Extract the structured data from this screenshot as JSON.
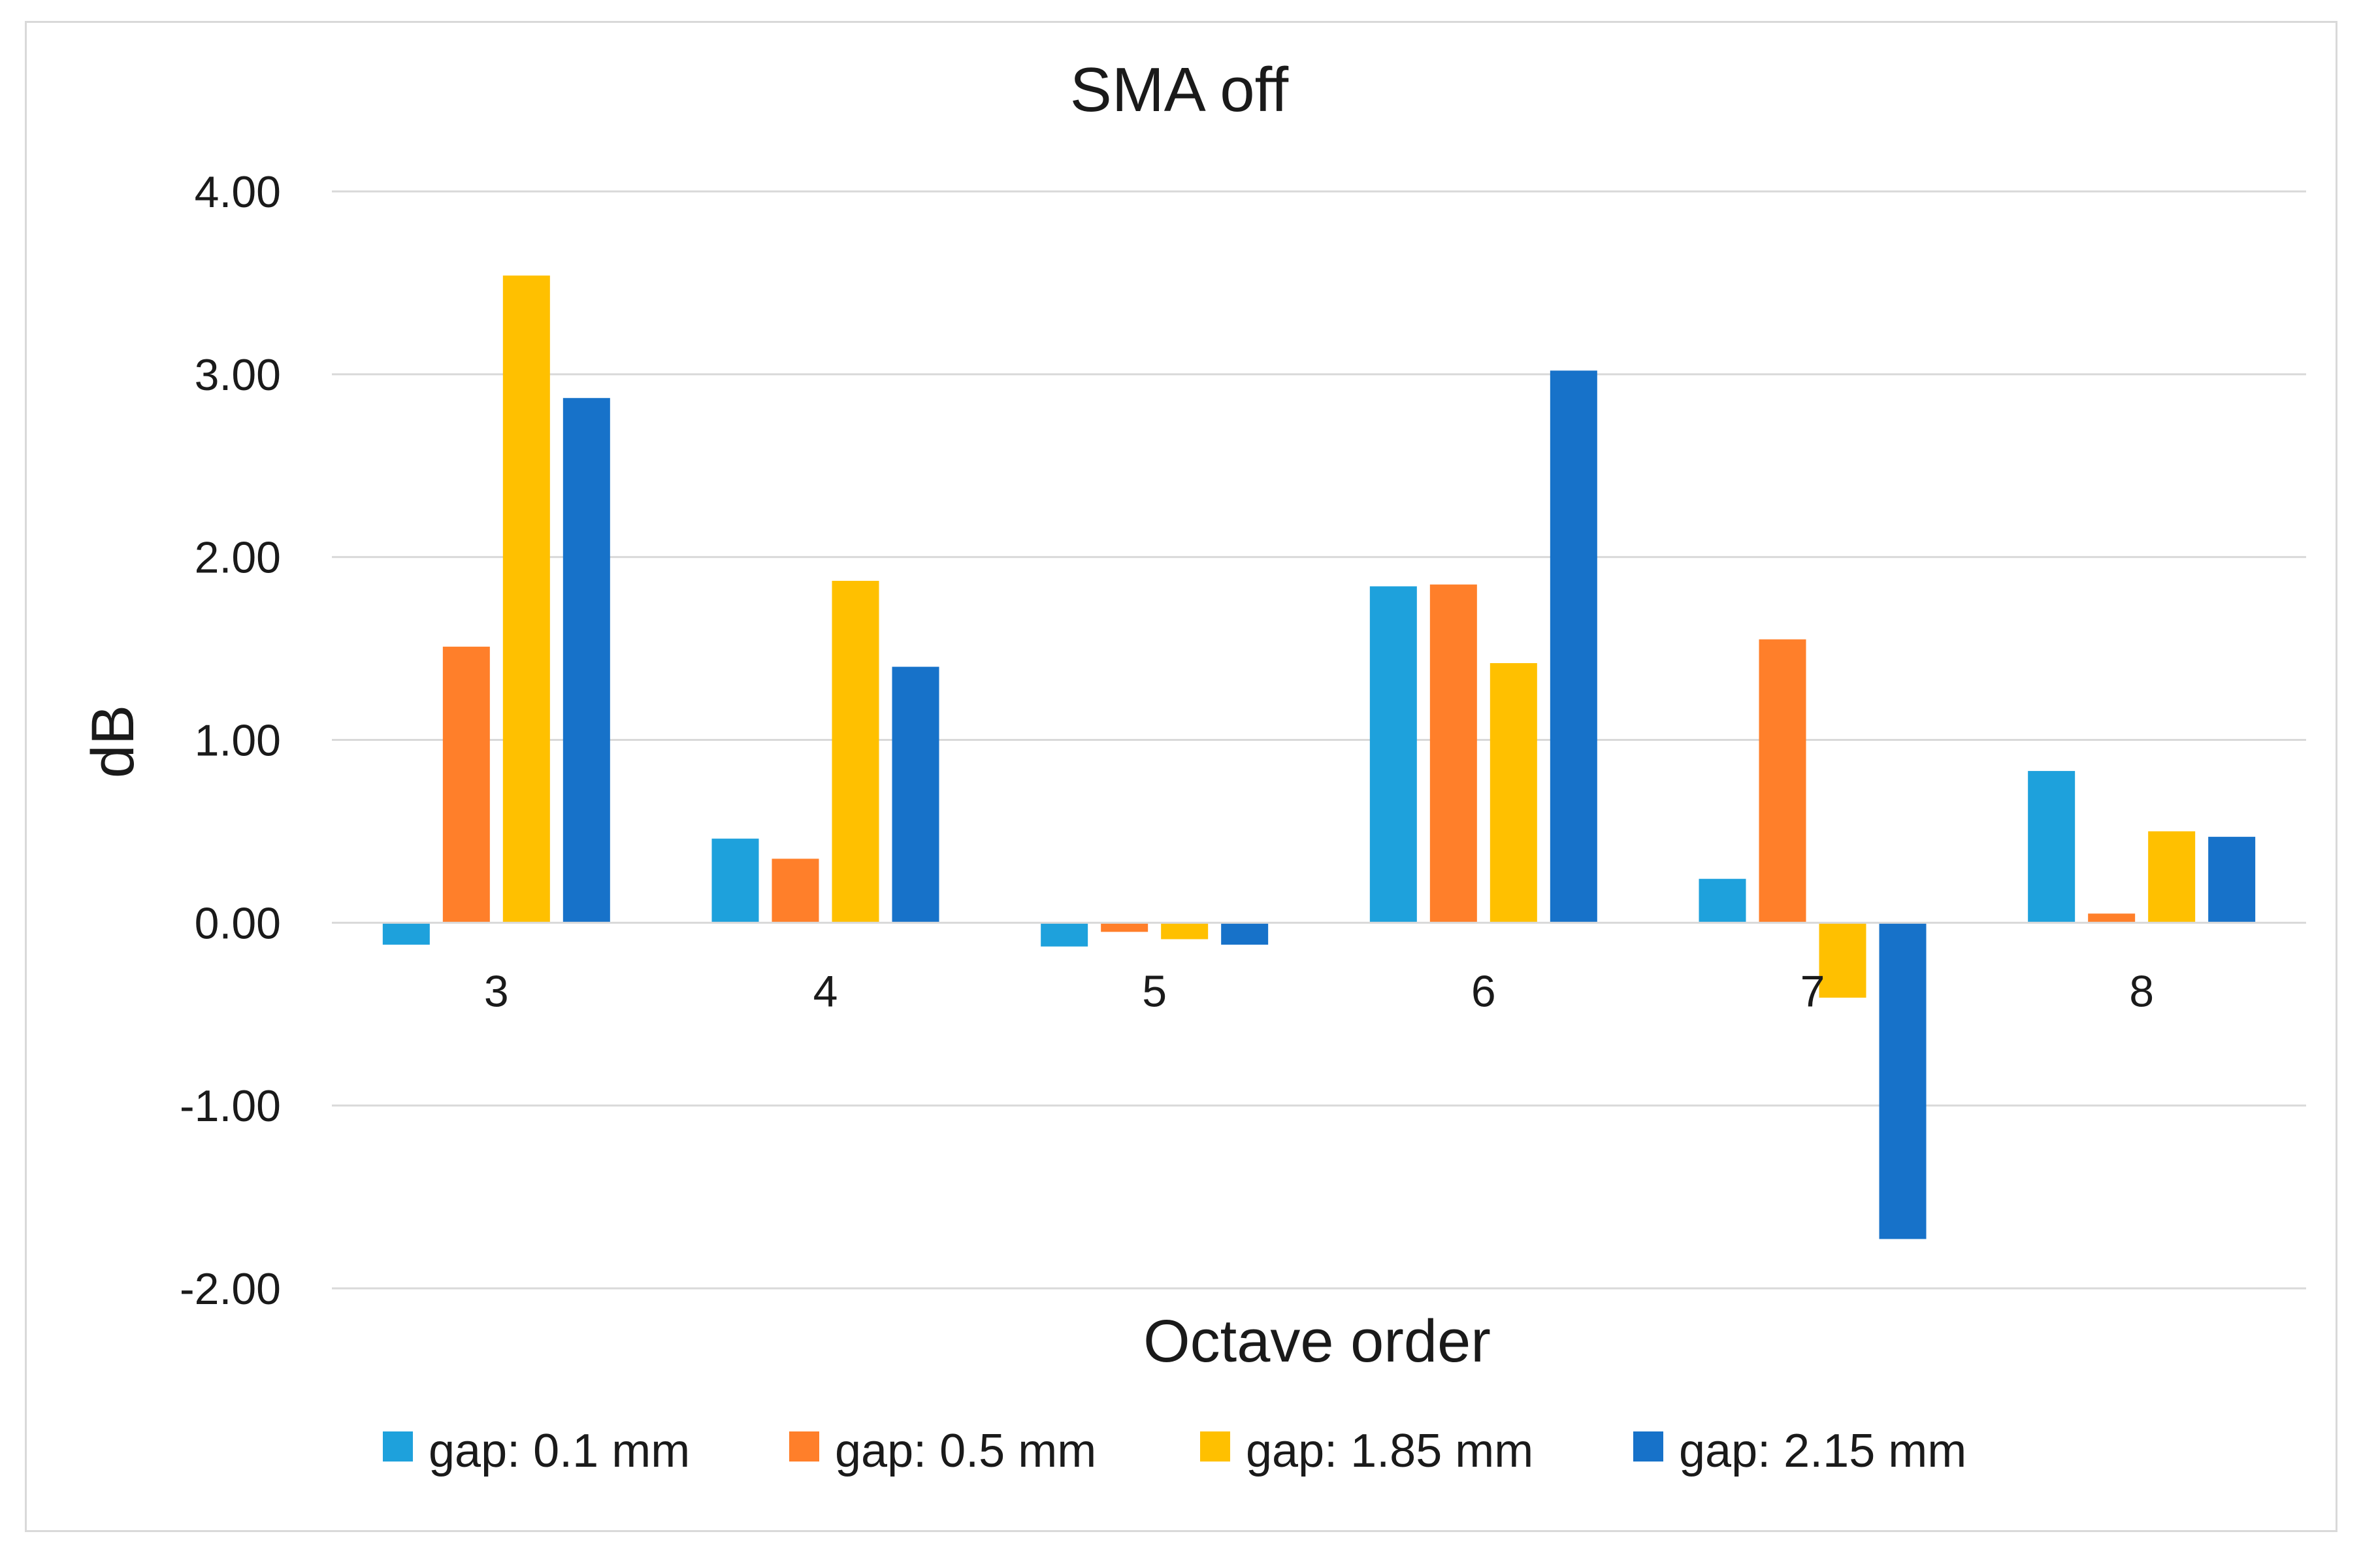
{
  "chart_data": {
    "type": "bar",
    "title": "SMA off",
    "xlabel": "Octave order",
    "ylabel": "dB",
    "categories": [
      "3",
      "4",
      "5",
      "6",
      "7",
      "8"
    ],
    "ylim": [
      -2.0,
      4.0
    ],
    "yticks": [
      4.0,
      3.0,
      2.0,
      1.0,
      0.0,
      -1.0,
      -2.0
    ],
    "ytick_labels": [
      "4.00",
      "3.00",
      "2.00",
      "1.00",
      "0.00",
      "-1.00",
      "-2.00"
    ],
    "grid": true,
    "legend_position": "bottom",
    "series": [
      {
        "name": "gap: 0.1 mm",
        "color": "#1ea1dc",
        "values": [
          -0.12,
          0.46,
          -0.13,
          1.84,
          0.24,
          0.83
        ]
      },
      {
        "name": "gap: 0.5 mm",
        "color": "#ff7f2a",
        "values": [
          1.51,
          0.35,
          -0.05,
          1.85,
          1.55,
          0.05
        ]
      },
      {
        "name": "gap: 1.85 mm",
        "color": "#ffc000",
        "values": [
          3.54,
          1.87,
          -0.09,
          1.42,
          -0.41,
          0.5
        ]
      },
      {
        "name": "gap: 2.15 mm",
        "color": "#1772c9",
        "values": [
          2.87,
          1.4,
          -0.12,
          3.02,
          -1.73,
          0.47
        ]
      }
    ]
  }
}
